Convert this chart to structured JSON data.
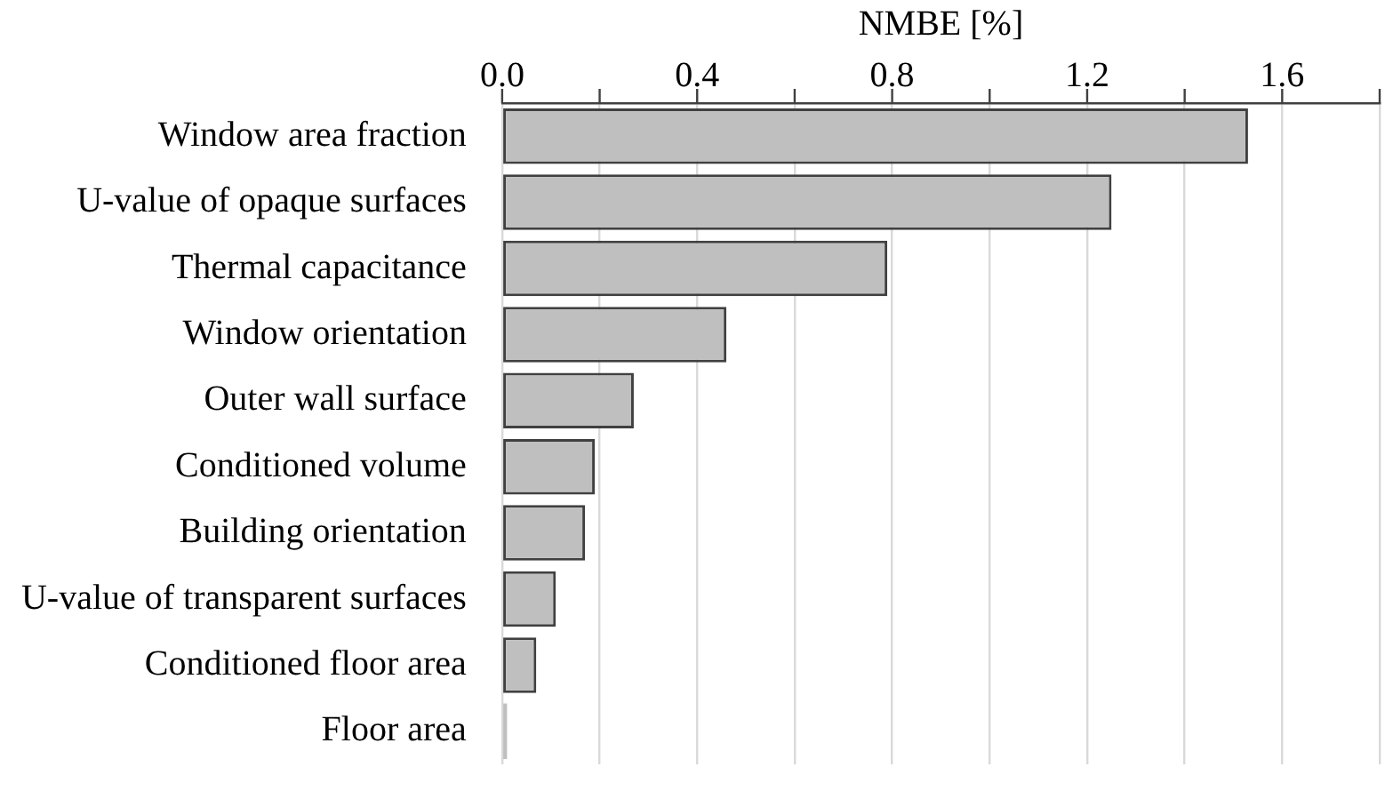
{
  "chart_data": {
    "type": "bar",
    "orientation": "horizontal",
    "xlabel": "NMBE [%]",
    "categories": [
      "Window area fraction",
      "U-value of opaque surfaces",
      "Thermal capacitance",
      "Window orientation",
      "Outer wall surface",
      "Conditioned volume",
      "Building orientation",
      "U-value of transparent surfaces",
      "Conditioned floor area",
      "Floor area"
    ],
    "values": [
      1.53,
      1.25,
      0.79,
      0.46,
      0.27,
      0.19,
      0.17,
      0.11,
      0.07,
      0.01
    ],
    "color": "#bfbfbf",
    "xlim": [
      0,
      1.8
    ],
    "xticks": [
      {
        "value": 0,
        "label": "0.0"
      },
      {
        "value": 0.2,
        "label": null
      },
      {
        "value": 0.4,
        "label": "0.4"
      },
      {
        "value": 0.6,
        "label": null
      },
      {
        "value": 0.8,
        "label": "0.8"
      },
      {
        "value": 1.0,
        "label": null
      },
      {
        "value": 1.2,
        "label": "1.2"
      },
      {
        "value": 1.4,
        "label": null
      },
      {
        "value": 1.6,
        "label": "1.6"
      },
      {
        "value": 1.8,
        "label": null
      }
    ],
    "grid": "x"
  }
}
